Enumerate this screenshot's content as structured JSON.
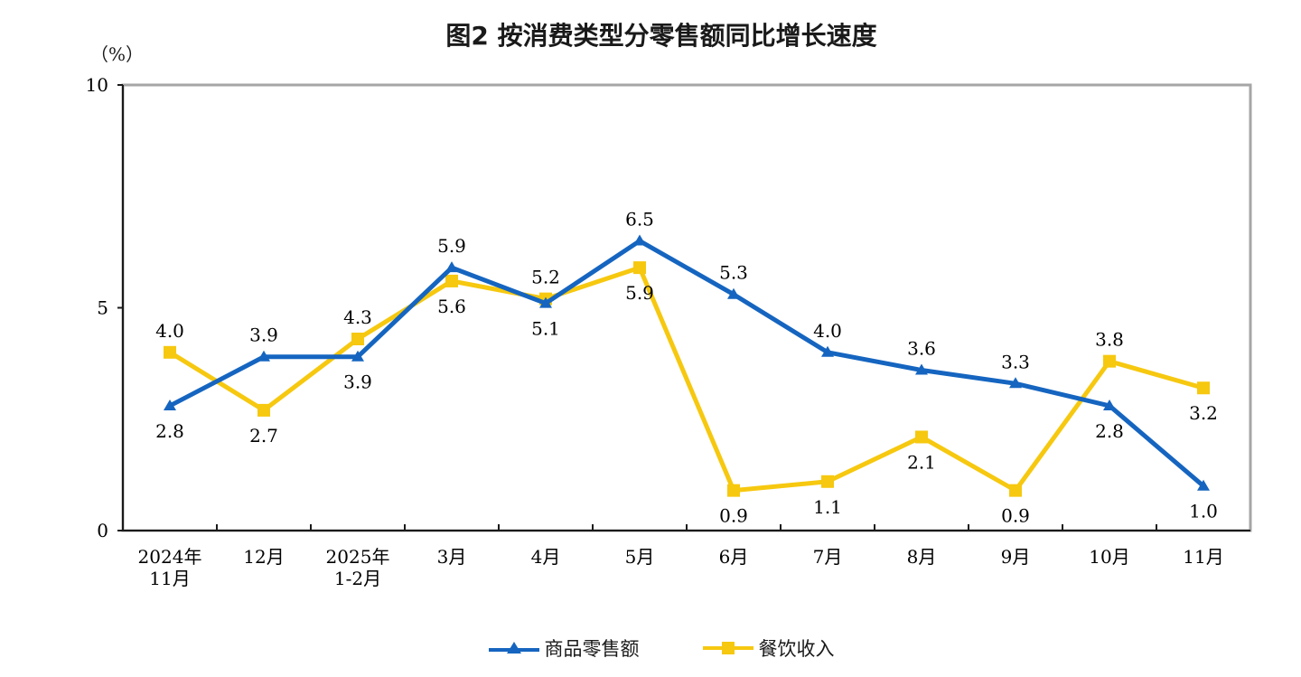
{
  "title": "图2  按消费类型分零售额同比增长速度",
  "unit": "（%）",
  "chart_data": {
    "type": "line",
    "title": "图2  按消费类型分零售额同比增长速度",
    "ylabel": "（%）",
    "ylim": [
      0,
      10
    ],
    "yticks": [
      "0",
      "5",
      "10"
    ],
    "categories": [
      [
        "2024年",
        "11月"
      ],
      [
        "12月"
      ],
      [
        "2025年",
        "1-2月"
      ],
      [
        "3月"
      ],
      [
        "4月"
      ],
      [
        "5月"
      ],
      [
        "6月"
      ],
      [
        "7月"
      ],
      [
        "8月"
      ],
      [
        "9月"
      ],
      [
        "10月"
      ],
      [
        "11月"
      ]
    ],
    "series": [
      {
        "name": "商品零售额",
        "color": "#1565c0",
        "marker": "triangle",
        "values": [
          2.8,
          3.9,
          3.9,
          5.9,
          5.1,
          6.5,
          5.3,
          4.0,
          3.6,
          3.3,
          2.8,
          1.0
        ],
        "labels": [
          "2.8",
          "3.9",
          "3.9",
          "5.9",
          "5.1",
          "6.5",
          "5.3",
          "4.0",
          "3.6",
          "3.3",
          "2.8",
          "1.0"
        ],
        "label_position": [
          "below",
          "above",
          "below",
          "above",
          "below",
          "above",
          "above",
          "above",
          "above",
          "above",
          "below",
          "below"
        ]
      },
      {
        "name": "餐饮收入",
        "color": "#f6c80f",
        "marker": "square",
        "values": [
          4.0,
          2.7,
          4.3,
          5.6,
          5.2,
          5.9,
          0.9,
          1.1,
          2.1,
          0.9,
          3.8,
          3.2
        ],
        "labels": [
          "4.0",
          "2.7",
          "4.3",
          "5.6",
          "5.2",
          "5.9",
          "0.9",
          "1.1",
          "2.1",
          "0.9",
          "3.8",
          "3.2"
        ],
        "label_position": [
          "above",
          "below",
          "above",
          "below",
          "above",
          "below",
          "below",
          "below",
          "below",
          "below",
          "above",
          "below"
        ]
      }
    ],
    "legend_position": "bottom-center",
    "grid": false
  }
}
